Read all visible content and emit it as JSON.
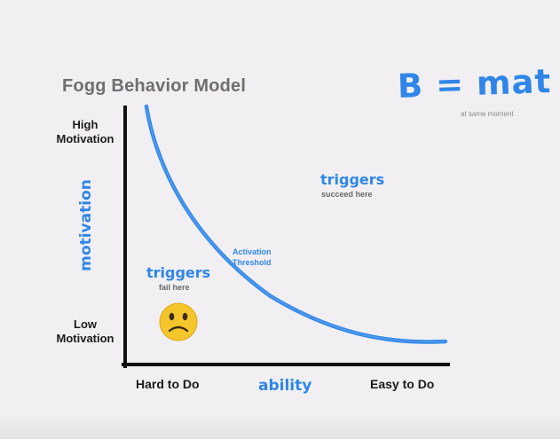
{
  "title": "Fogg Behavior Model",
  "formula": {
    "text": "B = mat",
    "note": "at same moment"
  },
  "y_axis": {
    "label": "motivation",
    "high_label": "High\nMotivation",
    "low_label": "Low\nMotivation"
  },
  "x_axis": {
    "label": "ability",
    "left_label": "Hard to Do",
    "right_label": "Easy to Do"
  },
  "curve": {
    "label": "Activation\nThreshold"
  },
  "regions": {
    "success": {
      "heading": "triggers",
      "note": "succeed here"
    },
    "failure": {
      "heading": "triggers",
      "note": "fail here",
      "emoji": "frowning-face"
    }
  },
  "colors": {
    "accent_blue": "#2f86e8",
    "title_gray": "#6f6f6f",
    "axis_black": "#111111",
    "emoji_yellow": "#f5c62c",
    "background": "#f1eff2"
  }
}
